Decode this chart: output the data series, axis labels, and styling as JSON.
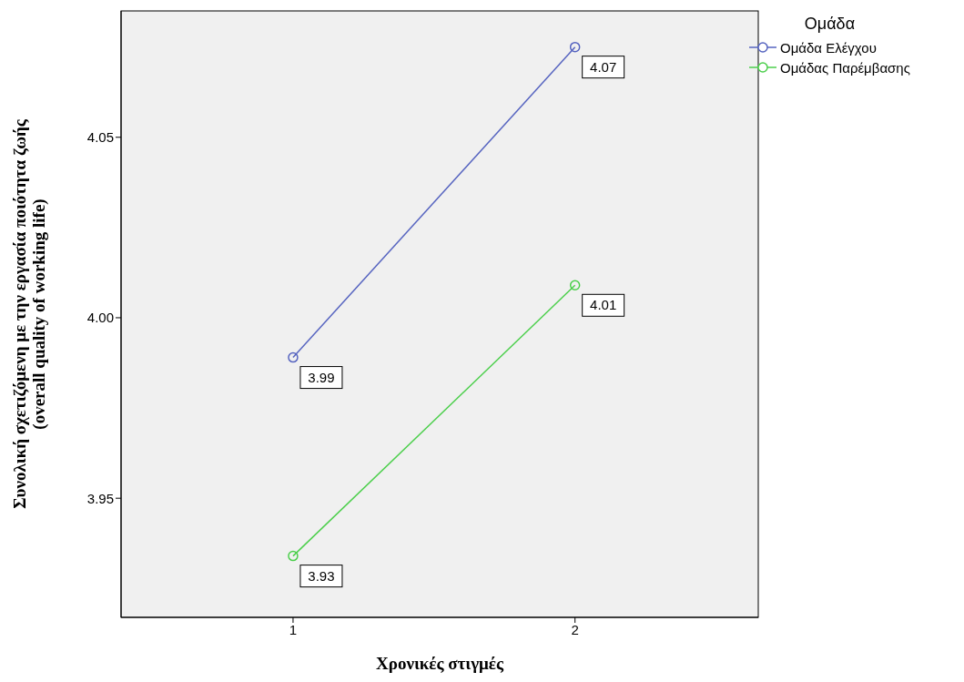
{
  "chart_data": {
    "type": "line",
    "xlabel": "Χρονικές στιγμές",
    "ylabel": "Συνολική σχετιζόμενη με την εργασία ποιότητα ζωής\n(overall quality of working life)",
    "legend_title": "Ομάδα",
    "legend": "top right",
    "marker": "circle",
    "line_style": "solid",
    "grid": false,
    "x": [
      1,
      2
    ],
    "xlim": [
      0.39,
      2.65
    ],
    "xticks": [
      1,
      2
    ],
    "ylim": [
      3.917,
      4.085
    ],
    "yticks": [
      3.95,
      {
        "value": 4.0,
        "label": "4.00"
      },
      4.05
    ],
    "series": [
      {
        "name": "Ομάδα Ελέγχου",
        "color": "#5664c0",
        "values": [
          3.989,
          4.075
        ],
        "value_labels": [
          "3.99",
          "4.07"
        ]
      },
      {
        "name": "Ομάδας Παρέμβασης",
        "color": "#4ccf4c",
        "values": [
          3.934,
          4.009
        ],
        "value_labels": [
          "3.93",
          "4.01"
        ]
      }
    ]
  }
}
